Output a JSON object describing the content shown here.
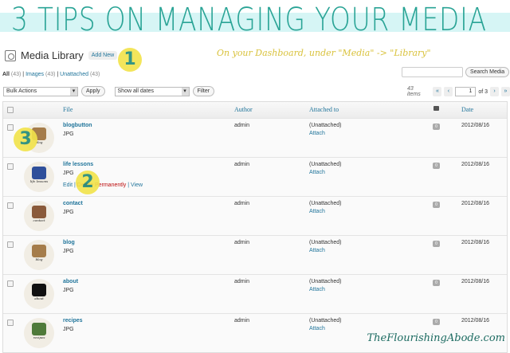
{
  "banner": {
    "title": "3 TIPS ON MANAGING YOUR MEDIA",
    "hint": "On your Dashboard, under \"Media\" -> \"Library\"",
    "watermark": "TheFlourishingAbode.com",
    "step_badges": [
      "1",
      "2",
      "3"
    ]
  },
  "header": {
    "title": "Media Library",
    "add_new": "Add New",
    "icon": "media-library-icon"
  },
  "filters": [
    {
      "label": "All",
      "count": "(43)"
    },
    {
      "label": "Images",
      "count": "(43)"
    },
    {
      "label": "Unattached",
      "count": "(43)"
    }
  ],
  "search": {
    "value": "",
    "button": "Search Media"
  },
  "toolbar": {
    "bulk": "Bulk Actions",
    "apply": "Apply",
    "dates": "Show all dates",
    "filter": "Filter"
  },
  "pager": {
    "items": "43 items",
    "first": "«",
    "prev": "‹",
    "page": "1",
    "of": "of 3",
    "next": "›",
    "last": "»"
  },
  "columns": {
    "file": "File",
    "author": "Author",
    "attached": "Attached to",
    "comments_icon": "comment-bubble-icon",
    "date": "Date"
  },
  "rows": [
    {
      "name": "blogbutton",
      "type": "JPG",
      "author": "admin",
      "attached": "(Unattached)",
      "attach": "Attach",
      "comments": "0",
      "date": "2012/08/16",
      "thumb_label": "blog",
      "thumb_color": "#a57c4a"
    },
    {
      "name": "life lessons",
      "type": "JPG",
      "author": "admin",
      "attached": "(Unattached)",
      "attach": "Attach",
      "comments": "0",
      "date": "2012/08/16",
      "thumb_label": "life lessons",
      "thumb_color": "#2f4f9a",
      "actions": {
        "edit": "Edit",
        "delete": "Delete Permanently",
        "view": "View"
      }
    },
    {
      "name": "contact",
      "type": "JPG",
      "author": "admin",
      "attached": "(Unattached)",
      "attach": "Attach",
      "comments": "0",
      "date": "2012/08/16",
      "thumb_label": "contact",
      "thumb_color": "#8a5a3a"
    },
    {
      "name": "blog",
      "type": "JPG",
      "author": "admin",
      "attached": "(Unattached)",
      "attach": "Attach",
      "comments": "0",
      "date": "2012/08/16",
      "thumb_label": "blog",
      "thumb_color": "#a57c4a"
    },
    {
      "name": "about",
      "type": "JPG",
      "author": "admin",
      "attached": "(Unattached)",
      "attach": "Attach",
      "comments": "0",
      "date": "2012/08/16",
      "thumb_label": "about",
      "thumb_color": "#111111"
    },
    {
      "name": "recipes",
      "type": "JPG",
      "author": "admin",
      "attached": "(Unattached)",
      "attach": "Attach",
      "comments": "0",
      "date": "2012/08/16",
      "thumb_label": "recipes",
      "thumb_color": "#4f7a3a"
    }
  ]
}
